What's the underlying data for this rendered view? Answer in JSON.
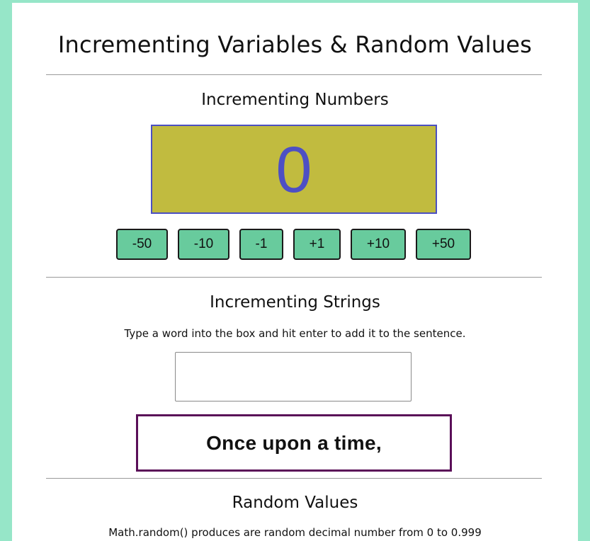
{
  "header": {
    "title": "Incrementing Variables & Random Values"
  },
  "numbers_section": {
    "title": "Incrementing Numbers",
    "counter_value": "0",
    "buttons": [
      "-50",
      "-10",
      "-1",
      "+1",
      "+10",
      "+50"
    ]
  },
  "strings_section": {
    "title": "Incrementing Strings",
    "instructions": "Type a word into the box and hit enter to add it to the sentence.",
    "input_value": "",
    "sentence": "Once upon a time,"
  },
  "random_section": {
    "title": "Random Values",
    "description": "Math.random() produces are random decimal number from 0 to 0.999"
  },
  "colors": {
    "background": "#96e6c8",
    "counter_box": "#c1bb3f",
    "counter_text": "#4d4fc4",
    "button": "#68cb9d",
    "sentence_border": "#5a0f58"
  }
}
